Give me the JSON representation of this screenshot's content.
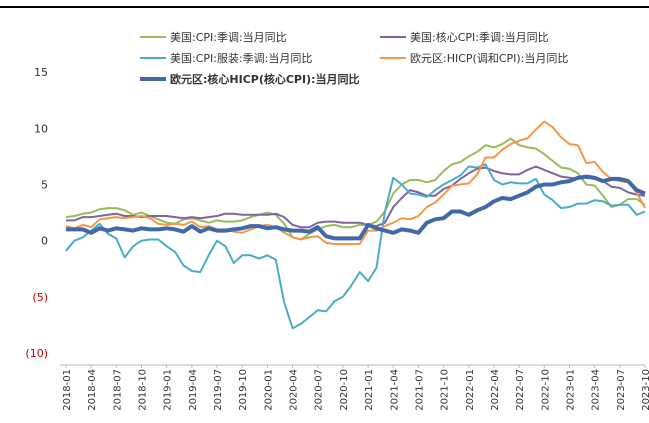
{
  "chart_data": {
    "type": "line",
    "categories": [
      "2018-01",
      null,
      null,
      "2018-04",
      null,
      null,
      "2018-07",
      null,
      null,
      "2018-10",
      null,
      null,
      "2019-01",
      null,
      null,
      "2019-04",
      null,
      null,
      "2019-07",
      null,
      null,
      "2019-10",
      null,
      null,
      "2020-01",
      null,
      null,
      "2020-04",
      null,
      null,
      "2020-07",
      null,
      null,
      "2020-10",
      null,
      null,
      "2021-01",
      null,
      null,
      "2021-04",
      null,
      null,
      "2021-07",
      null,
      null,
      "2021-10",
      null,
      null,
      "2022-01",
      null,
      null,
      "2022-04",
      null,
      null,
      "2022-07",
      null,
      null,
      "2022-10",
      null,
      null,
      "2023-01",
      null,
      null,
      "2023-04",
      null,
      null,
      "2023-07",
      null,
      null,
      "2023-10"
    ],
    "series": [
      {
        "name": "美国:CPI:季调:当月同比",
        "color": "#9bbb59",
        "width": 2,
        "values": [
          2.1,
          2.2,
          2.4,
          2.5,
          2.8,
          2.9,
          2.9,
          2.7,
          2.3,
          2.5,
          2.2,
          1.9,
          1.6,
          1.5,
          1.9,
          2.0,
          1.8,
          1.6,
          1.8,
          1.7,
          1.7,
          1.8,
          2.1,
          2.3,
          2.5,
          2.3,
          1.5,
          0.3,
          0.1,
          0.6,
          1.0,
          1.3,
          1.4,
          1.2,
          1.2,
          1.4,
          1.4,
          1.7,
          2.6,
          4.2,
          5.0,
          5.4,
          5.4,
          5.2,
          5.4,
          6.2,
          6.8,
          7.0,
          7.5,
          7.9,
          8.5,
          8.3,
          8.6,
          9.1,
          8.5,
          8.3,
          8.2,
          7.7,
          7.1,
          6.5,
          6.4,
          6.0,
          5.0,
          4.9,
          4.0,
          3.0,
          3.2,
          3.7,
          3.7,
          3.2
        ]
      },
      {
        "name": "美国:核心CPI:季调:当月同比",
        "color": "#8064a2",
        "width": 2,
        "values": [
          1.8,
          1.8,
          2.1,
          2.1,
          2.2,
          2.3,
          2.4,
          2.2,
          2.2,
          2.1,
          2.2,
          2.2,
          2.2,
          2.1,
          2.0,
          2.1,
          2.0,
          2.1,
          2.2,
          2.4,
          2.4,
          2.3,
          2.3,
          2.3,
          2.3,
          2.4,
          2.1,
          1.4,
          1.2,
          1.2,
          1.6,
          1.7,
          1.7,
          1.6,
          1.6,
          1.6,
          1.4,
          1.3,
          1.6,
          3.0,
          3.8,
          4.5,
          4.3,
          4.0,
          4.0,
          4.6,
          4.9,
          5.5,
          6.0,
          6.4,
          6.5,
          6.2,
          6.0,
          5.9,
          5.9,
          6.3,
          6.6,
          6.3,
          6.0,
          5.7,
          5.6,
          5.5,
          5.6,
          5.5,
          5.3,
          4.8,
          4.7,
          4.3,
          4.1,
          4.0
        ]
      },
      {
        "name": "美国:CPI:服装:季调:当月同比",
        "color": "#4bacc6",
        "width": 2,
        "values": [
          -0.9,
          0.0,
          0.3,
          0.9,
          1.5,
          0.6,
          0.2,
          -1.5,
          -0.5,
          0.0,
          0.1,
          0.1,
          -0.5,
          -1.0,
          -2.2,
          -2.7,
          -2.8,
          -1.3,
          0.0,
          -0.5,
          -2.0,
          -1.3,
          -1.3,
          -1.6,
          -1.3,
          -1.7,
          -5.5,
          -7.8,
          -7.4,
          -6.8,
          -6.2,
          -6.3,
          -5.4,
          -5.0,
          -4.0,
          -2.8,
          -3.6,
          -2.4,
          2.6,
          5.6,
          5.0,
          4.2,
          4.1,
          3.9,
          4.5,
          5.0,
          5.4,
          5.8,
          6.6,
          6.5,
          6.8,
          5.4,
          5.0,
          5.2,
          5.1,
          5.1,
          5.5,
          4.1,
          3.6,
          2.9,
          3.0,
          3.3,
          3.3,
          3.6,
          3.5,
          3.1,
          3.2,
          3.2,
          2.3,
          2.6
        ]
      },
      {
        "name": "欧元区:HICP(调和CPI):当月同比",
        "color": "#f79646",
        "width": 2,
        "values": [
          1.3,
          1.1,
          1.4,
          1.2,
          1.9,
          2.0,
          2.1,
          2.0,
          2.1,
          2.2,
          2.0,
          1.5,
          1.4,
          1.5,
          1.4,
          1.7,
          1.2,
          1.3,
          1.0,
          1.0,
          0.8,
          0.7,
          1.0,
          1.3,
          1.4,
          1.2,
          0.7,
          0.3,
          0.1,
          0.3,
          0.4,
          -0.2,
          -0.3,
          -0.3,
          -0.3,
          -0.3,
          0.9,
          0.9,
          1.3,
          1.6,
          2.0,
          1.9,
          2.2,
          3.0,
          3.4,
          4.1,
          4.9,
          5.0,
          5.1,
          5.9,
          7.4,
          7.4,
          8.1,
          8.6,
          8.9,
          9.1,
          9.9,
          10.6,
          10.1,
          9.2,
          8.6,
          8.5,
          6.9,
          7.0,
          6.1,
          5.5,
          5.3,
          5.2,
          4.3,
          2.9
        ]
      },
      {
        "name": "欧元区:核心HICP(核心CPI):当月同比",
        "color": "#4168a8",
        "width": 4,
        "values": [
          1.0,
          1.0,
          1.0,
          0.7,
          1.1,
          0.9,
          1.1,
          1.0,
          0.9,
          1.1,
          1.0,
          1.0,
          1.1,
          1.0,
          0.8,
          1.3,
          0.8,
          1.1,
          0.9,
          0.9,
          1.0,
          1.1,
          1.3,
          1.3,
          1.1,
          1.2,
          1.0,
          0.9,
          0.9,
          0.8,
          1.2,
          0.4,
          0.2,
          0.2,
          0.2,
          0.2,
          1.4,
          1.1,
          0.9,
          0.7,
          1.0,
          0.9,
          0.7,
          1.6,
          1.9,
          2.0,
          2.6,
          2.6,
          2.3,
          2.7,
          3.0,
          3.5,
          3.8,
          3.7,
          4.0,
          4.3,
          4.8,
          5.0,
          5.0,
          5.2,
          5.3,
          5.6,
          5.7,
          5.6,
          5.3,
          5.5,
          5.5,
          5.3,
          4.5,
          4.2
        ]
      }
    ],
    "ylim": [
      -10,
      20
    ],
    "yticks": [
      {
        "value": -10,
        "label": "(10)"
      },
      {
        "value": -5,
        "label": "(5)"
      },
      0,
      5,
      10,
      15
    ],
    "tick_label_color": "#c00000"
  }
}
